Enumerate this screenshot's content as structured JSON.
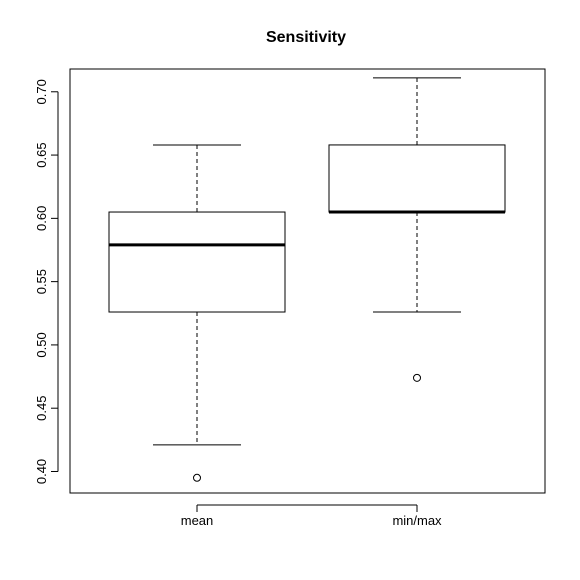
{
  "chart_data": {
    "type": "boxplot",
    "title": "Sensitivity",
    "xlabel": "",
    "ylabel": "",
    "ylim": [
      0.383,
      0.718
    ],
    "yticks": [
      0.4,
      0.45,
      0.5,
      0.55,
      0.6,
      0.65,
      0.7
    ],
    "ytick_labels": [
      "0.40",
      "0.45",
      "0.50",
      "0.55",
      "0.60",
      "0.65",
      "0.70"
    ],
    "grid": false,
    "categories": [
      "mean",
      "min/max"
    ],
    "boxes": [
      {
        "category": "mean",
        "whisker_low": 0.421,
        "q1": 0.526,
        "median": 0.579,
        "q3": 0.605,
        "whisker_high": 0.658,
        "outliers": [
          0.395
        ]
      },
      {
        "category": "min/max",
        "whisker_low": 0.526,
        "q1": 0.605,
        "median": 0.605,
        "q3": 0.658,
        "whisker_high": 0.711,
        "outliers": [
          0.474
        ]
      }
    ]
  }
}
